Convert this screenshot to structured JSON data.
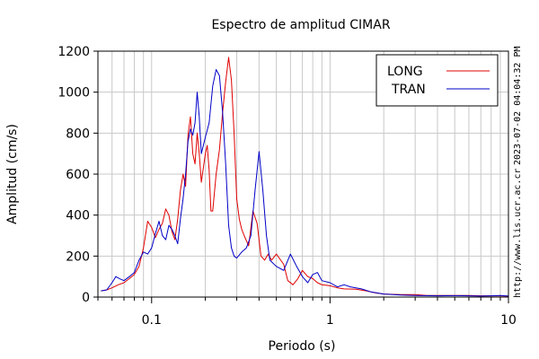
{
  "chart_data": {
    "type": "line",
    "title": "Espectro de amplitud CIMAR",
    "xlabel": "Periodo (s)",
    "ylabel": "Amplitud (cm/s)",
    "x_scale": "log",
    "xlim": [
      0.05,
      10
    ],
    "ylim": [
      0,
      1200
    ],
    "x_ticks": [
      {
        "value": 0.1,
        "label": "0.1"
      },
      {
        "value": 1,
        "label": "1"
      },
      {
        "value": 10,
        "label": "10"
      }
    ],
    "y_ticks": [
      {
        "value": 0,
        "label": "0"
      },
      {
        "value": 200,
        "label": "200"
      },
      {
        "value": 400,
        "label": "400"
      },
      {
        "value": 600,
        "label": "600"
      },
      {
        "value": 800,
        "label": "800"
      },
      {
        "value": 1000,
        "label": "1000"
      },
      {
        "value": 1200,
        "label": "1200"
      }
    ],
    "grid": true,
    "legend_position": "top-right",
    "series": [
      {
        "name": "LONG",
        "color": "#e00000",
        "points": [
          [
            0.052,
            30
          ],
          [
            0.056,
            35
          ],
          [
            0.06,
            45
          ],
          [
            0.065,
            60
          ],
          [
            0.07,
            70
          ],
          [
            0.075,
            90
          ],
          [
            0.08,
            110
          ],
          [
            0.085,
            150
          ],
          [
            0.09,
            240
          ],
          [
            0.095,
            370
          ],
          [
            0.1,
            340
          ],
          [
            0.105,
            290
          ],
          [
            0.11,
            330
          ],
          [
            0.115,
            360
          ],
          [
            0.12,
            430
          ],
          [
            0.125,
            400
          ],
          [
            0.13,
            320
          ],
          [
            0.135,
            280
          ],
          [
            0.14,
            380
          ],
          [
            0.145,
            520
          ],
          [
            0.15,
            600
          ],
          [
            0.155,
            540
          ],
          [
            0.16,
            790
          ],
          [
            0.165,
            880
          ],
          [
            0.17,
            700
          ],
          [
            0.175,
            650
          ],
          [
            0.18,
            800
          ],
          [
            0.185,
            700
          ],
          [
            0.19,
            560
          ],
          [
            0.2,
            700
          ],
          [
            0.205,
            740
          ],
          [
            0.21,
            620
          ],
          [
            0.215,
            420
          ],
          [
            0.22,
            420
          ],
          [
            0.23,
            600
          ],
          [
            0.24,
            720
          ],
          [
            0.25,
            900
          ],
          [
            0.26,
            1050
          ],
          [
            0.27,
            1170
          ],
          [
            0.28,
            1060
          ],
          [
            0.29,
            800
          ],
          [
            0.3,
            480
          ],
          [
            0.31,
            380
          ],
          [
            0.32,
            330
          ],
          [
            0.33,
            300
          ],
          [
            0.35,
            250
          ],
          [
            0.37,
            420
          ],
          [
            0.39,
            360
          ],
          [
            0.41,
            200
          ],
          [
            0.43,
            180
          ],
          [
            0.45,
            210
          ],
          [
            0.47,
            180
          ],
          [
            0.5,
            210
          ],
          [
            0.55,
            160
          ],
          [
            0.58,
            80
          ],
          [
            0.62,
            60
          ],
          [
            0.66,
            90
          ],
          [
            0.7,
            130
          ],
          [
            0.75,
            100
          ],
          [
            0.8,
            90
          ],
          [
            0.85,
            70
          ],
          [
            0.9,
            60
          ],
          [
            1.0,
            55
          ],
          [
            1.1,
            45
          ],
          [
            1.2,
            40
          ],
          [
            1.4,
            38
          ],
          [
            1.6,
            30
          ],
          [
            1.8,
            20
          ],
          [
            2.0,
            15
          ],
          [
            2.5,
            12
          ],
          [
            3.0,
            12
          ],
          [
            3.5,
            8
          ],
          [
            4,
            8
          ],
          [
            5,
            8
          ],
          [
            6,
            8
          ],
          [
            7,
            6
          ],
          [
            8,
            6
          ],
          [
            9,
            6
          ],
          [
            10,
            5
          ]
        ]
      },
      {
        "name": "TRAN",
        "color": "#0000c8",
        "points": [
          [
            0.052,
            30
          ],
          [
            0.056,
            35
          ],
          [
            0.06,
            70
          ],
          [
            0.063,
            100
          ],
          [
            0.066,
            90
          ],
          [
            0.07,
            80
          ],
          [
            0.075,
            100
          ],
          [
            0.08,
            120
          ],
          [
            0.085,
            180
          ],
          [
            0.09,
            220
          ],
          [
            0.095,
            210
          ],
          [
            0.1,
            240
          ],
          [
            0.105,
            310
          ],
          [
            0.11,
            370
          ],
          [
            0.115,
            300
          ],
          [
            0.12,
            280
          ],
          [
            0.125,
            350
          ],
          [
            0.13,
            330
          ],
          [
            0.135,
            300
          ],
          [
            0.14,
            260
          ],
          [
            0.145,
            380
          ],
          [
            0.15,
            480
          ],
          [
            0.155,
            600
          ],
          [
            0.16,
            760
          ],
          [
            0.165,
            820
          ],
          [
            0.17,
            790
          ],
          [
            0.175,
            850
          ],
          [
            0.18,
            1000
          ],
          [
            0.185,
            880
          ],
          [
            0.19,
            700
          ],
          [
            0.2,
            780
          ],
          [
            0.21,
            850
          ],
          [
            0.22,
            1030
          ],
          [
            0.23,
            1110
          ],
          [
            0.24,
            1080
          ],
          [
            0.25,
            900
          ],
          [
            0.26,
            650
          ],
          [
            0.27,
            350
          ],
          [
            0.28,
            240
          ],
          [
            0.29,
            200
          ],
          [
            0.3,
            190
          ],
          [
            0.32,
            220
          ],
          [
            0.34,
            240
          ],
          [
            0.36,
            300
          ],
          [
            0.38,
            520
          ],
          [
            0.4,
            710
          ],
          [
            0.42,
            520
          ],
          [
            0.44,
            300
          ],
          [
            0.46,
            180
          ],
          [
            0.5,
            150
          ],
          [
            0.55,
            130
          ],
          [
            0.6,
            210
          ],
          [
            0.65,
            150
          ],
          [
            0.7,
            100
          ],
          [
            0.75,
            70
          ],
          [
            0.8,
            110
          ],
          [
            0.85,
            120
          ],
          [
            0.9,
            80
          ],
          [
            1.0,
            70
          ],
          [
            1.1,
            50
          ],
          [
            1.2,
            60
          ],
          [
            1.3,
            50
          ],
          [
            1.5,
            40
          ],
          [
            1.7,
            25
          ],
          [
            2.0,
            15
          ],
          [
            2.5,
            10
          ],
          [
            3.0,
            8
          ],
          [
            4,
            6
          ],
          [
            5,
            7
          ],
          [
            6,
            6
          ],
          [
            7,
            5
          ],
          [
            8,
            6
          ],
          [
            9,
            8
          ],
          [
            10,
            5
          ]
        ]
      }
    ],
    "side_annotations": [
      "2023-07-02 04:04:32 PM",
      "http://www.lis.ucr.ac.cr"
    ]
  }
}
